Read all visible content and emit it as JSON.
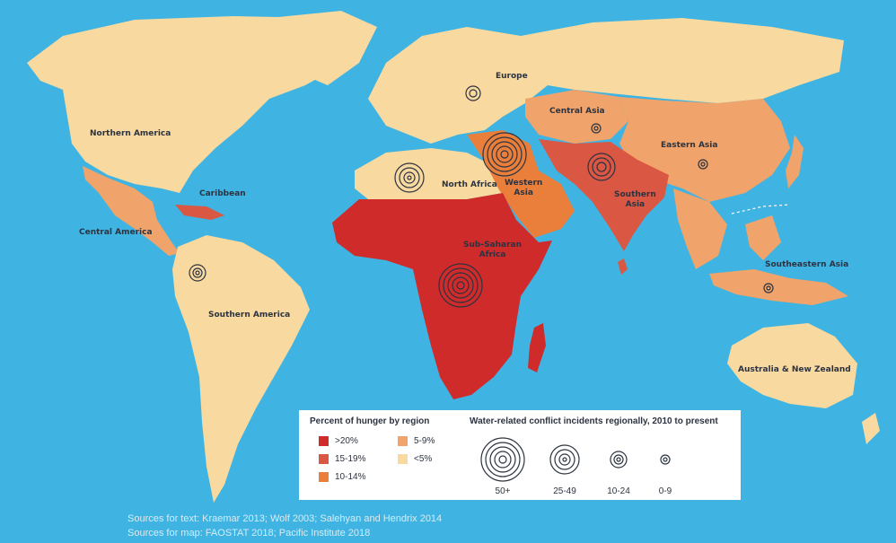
{
  "colors": {
    "ocean": "#3fb4e2",
    "lt5": "#f8d9a0",
    "r5_9": "#f0a36a",
    "r10_14": "#e97f3a",
    "r15_19": "#da5743",
    "gt20": "#cf2b2b",
    "ring": "#2c3340"
  },
  "regions": {
    "northern_america": "Northern America",
    "caribbean": "Caribbean",
    "central_america": "Central America",
    "southern_america": "Southern America",
    "europe": "Europe",
    "north_africa": "North Africa",
    "western_asia": "Western\nAsia",
    "central_asia": "Central Asia",
    "eastern_asia": "Eastern Asia",
    "southern_asia": "Southern\nAsia",
    "sub_saharan_africa": "Sub-Saharan\nAfrica",
    "southeastern_asia": "Southeastern Asia",
    "australia_nz": "Australia & New Zealand"
  },
  "legend": {
    "hunger_title": "Percent of hunger by region",
    "hunger_items": [
      {
        "label": ">20%",
        "color": "#cf2b2b"
      },
      {
        "label": "15-19%",
        "color": "#da5743"
      },
      {
        "label": "10-14%",
        "color": "#e97f3a"
      },
      {
        "label": "5-9%",
        "color": "#f0a36a"
      },
      {
        "label": "<5%",
        "color": "#f8d9a0"
      }
    ],
    "conflict_title": "Water-related conflict incidents regionally, 2010 to present",
    "conflict_items": [
      "50+",
      "25-49",
      "10-24",
      "0-9"
    ]
  },
  "sources": {
    "text": "Sources for text: Kraemar 2013; Wolf 2003; Salehyan and Hendrix 2014",
    "map": "Sources for map: FAOSTAT 2018; Pacific Institute 2018"
  }
}
